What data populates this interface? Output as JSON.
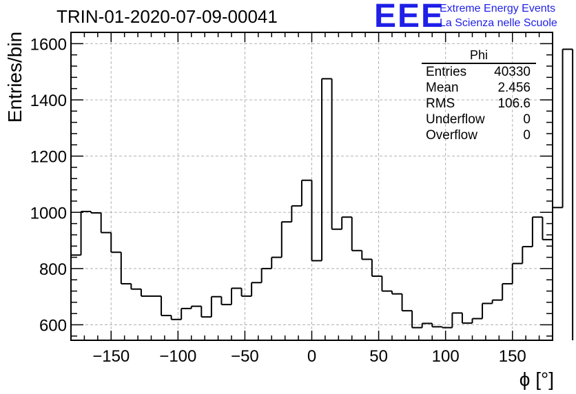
{
  "title": "TRIN-01-2020-07-09-00041",
  "logo": {
    "mark": "EEE",
    "line1": "Extreme Energy Events",
    "line2": "La Scienza nelle Scuole",
    "color": "#1f1fe8"
  },
  "stats_box": {
    "title": "Phi",
    "rows": [
      {
        "label": "Entries",
        "value": "40330"
      },
      {
        "label": "Mean",
        "value": "2.456"
      },
      {
        "label": "RMS",
        "value": "106.6"
      },
      {
        "label": "Underflow",
        "value": "0"
      },
      {
        "label": "Overflow",
        "value": "0"
      }
    ]
  },
  "chart_data": {
    "type": "bar",
    "style": "step-histogram",
    "title": "TRIN-01-2020-07-09-00041",
    "xlabel": "ϕ [°]",
    "ylabel": "Entries/bin",
    "xlim": [
      -180,
      180
    ],
    "ylim": [
      545,
      1640
    ],
    "bin_width": 7.5,
    "x_ticks": [
      -150,
      -100,
      -50,
      0,
      50,
      100,
      150
    ],
    "x_tick_labels": [
      "−150",
      "−100",
      "−50",
      "0",
      "50",
      "100",
      "150"
    ],
    "y_ticks": [
      600,
      800,
      1000,
      1200,
      1400,
      1600
    ],
    "y_tick_labels": [
      "600",
      "800",
      "1000",
      "1200",
      "1400",
      "1600"
    ],
    "grid": true,
    "line_color": "#000000",
    "grid_color": "#b0b0b0",
    "values": [
      848,
      1003,
      998,
      928,
      858,
      746,
      727,
      702,
      702,
      633,
      619,
      658,
      666,
      628,
      700,
      672,
      730,
      702,
      750,
      800,
      840,
      966,
      1023,
      1114,
      828,
      1475,
      940,
      983,
      864,
      833,
      773,
      720,
      710,
      650,
      590,
      605,
      593,
      590,
      642,
      606,
      622,
      676,
      688,
      746,
      818,
      878,
      983,
      903,
      1017,
      1580
    ]
  }
}
